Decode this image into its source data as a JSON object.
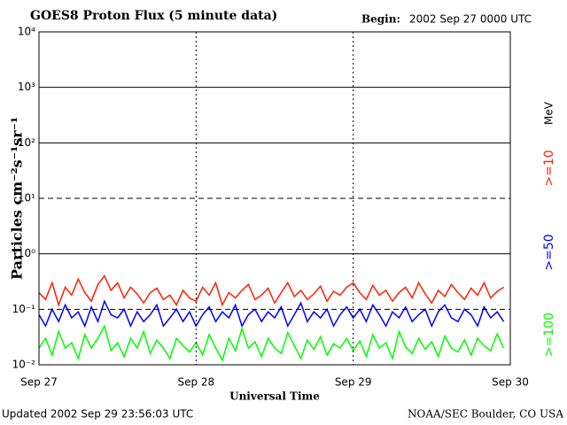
{
  "chart_data": {
    "type": "line",
    "title": "GOES8 Proton Flux (5 minute data)",
    "begin_label": "Begin:",
    "begin": "2002 Sep 27 0000 UTC",
    "ylabel": "Particles cm⁻²s⁻¹sr⁻¹",
    "xlabel": "Universal Time",
    "updated": "Updated 2002 Sep 29 23:56:03 UTC",
    "source": "NOAA/SEC Boulder, CO USA",
    "units_label": "MeV",
    "log_y": true,
    "ylim": [
      0.01,
      10000
    ],
    "yticks": [
      {
        "value": 10000,
        "label": "10⁴"
      },
      {
        "value": 1000,
        "label": "10³"
      },
      {
        "value": 100,
        "label": "10²"
      },
      {
        "value": 10,
        "label": "10¹"
      },
      {
        "value": 1,
        "label": "10⁰"
      },
      {
        "value": 0.1,
        "label": "10⁻¹"
      },
      {
        "value": 0.01,
        "label": "10⁻²"
      }
    ],
    "grid_styles": [
      "solid",
      "solid",
      "solid",
      "dashed",
      "solid",
      "dashed",
      "solid"
    ],
    "xlim": [
      0,
      72
    ],
    "xticks": [
      {
        "value": 0,
        "label": "Sep 27"
      },
      {
        "value": 24,
        "label": "Sep 28"
      },
      {
        "value": 48,
        "label": "Sep 29"
      },
      {
        "value": 72,
        "label": "Sep 30"
      }
    ],
    "x": [
      0,
      1,
      2,
      3,
      4,
      5,
      6,
      7,
      8,
      9,
      10,
      11,
      12,
      13,
      14,
      15,
      16,
      17,
      18,
      19,
      20,
      21,
      22,
      23,
      24,
      25,
      26,
      27,
      28,
      29,
      30,
      31,
      32,
      33,
      34,
      35,
      36,
      37,
      38,
      39,
      40,
      41,
      42,
      43,
      44,
      45,
      46,
      47,
      48,
      49,
      50,
      51,
      52,
      53,
      54,
      55,
      56,
      57,
      58,
      59,
      60,
      61,
      62,
      63,
      64,
      65,
      66,
      67,
      68,
      69,
      70,
      71
    ],
    "series": [
      {
        "name": ">=10",
        "color": "#ff2000",
        "values": [
          0.2,
          0.15,
          0.3,
          0.12,
          0.25,
          0.18,
          0.35,
          0.2,
          0.14,
          0.28,
          0.4,
          0.22,
          0.3,
          0.16,
          0.25,
          0.19,
          0.13,
          0.2,
          0.24,
          0.15,
          0.18,
          0.12,
          0.22,
          0.16,
          0.14,
          0.25,
          0.18,
          0.3,
          0.12,
          0.2,
          0.16,
          0.22,
          0.28,
          0.15,
          0.18,
          0.24,
          0.13,
          0.2,
          0.3,
          0.17,
          0.22,
          0.15,
          0.19,
          0.26,
          0.14,
          0.21,
          0.18,
          0.25,
          0.3,
          0.2,
          0.15,
          0.27,
          0.18,
          0.22,
          0.14,
          0.2,
          0.25,
          0.16,
          0.3,
          0.19,
          0.13,
          0.22,
          0.17,
          0.28,
          0.2,
          0.15,
          0.24,
          0.18,
          0.3,
          0.16,
          0.21,
          0.25
        ]
      },
      {
        "name": ">=50",
        "color": "#0000ff",
        "values": [
          0.08,
          0.05,
          0.1,
          0.06,
          0.12,
          0.07,
          0.09,
          0.05,
          0.11,
          0.06,
          0.14,
          0.08,
          0.07,
          0.1,
          0.05,
          0.09,
          0.06,
          0.08,
          0.12,
          0.05,
          0.07,
          0.1,
          0.06,
          0.09,
          0.05,
          0.08,
          0.11,
          0.06,
          0.09,
          0.07,
          0.12,
          0.05,
          0.08,
          0.1,
          0.06,
          0.09,
          0.07,
          0.11,
          0.05,
          0.08,
          0.13,
          0.06,
          0.09,
          0.07,
          0.1,
          0.05,
          0.08,
          0.11,
          0.07,
          0.1,
          0.06,
          0.12,
          0.08,
          0.05,
          0.09,
          0.07,
          0.11,
          0.06,
          0.08,
          0.1,
          0.05,
          0.09,
          0.12,
          0.07,
          0.06,
          0.1,
          0.08,
          0.05,
          0.11,
          0.07,
          0.09,
          0.06
        ]
      },
      {
        "name": ">=100",
        "color": "#00ff00",
        "values": [
          0.02,
          0.03,
          0.015,
          0.04,
          0.02,
          0.025,
          0.013,
          0.035,
          0.02,
          0.03,
          0.05,
          0.018,
          0.025,
          0.014,
          0.03,
          0.02,
          0.04,
          0.016,
          0.028,
          0.02,
          0.013,
          0.03,
          0.022,
          0.017,
          0.025,
          0.015,
          0.035,
          0.02,
          0.012,
          0.03,
          0.018,
          0.045,
          0.02,
          0.026,
          0.014,
          0.03,
          0.02,
          0.016,
          0.038,
          0.022,
          0.013,
          0.028,
          0.019,
          0.032,
          0.015,
          0.024,
          0.02,
          0.03,
          0.018,
          0.027,
          0.014,
          0.035,
          0.02,
          0.025,
          0.013,
          0.04,
          0.021,
          0.016,
          0.03,
          0.019,
          0.026,
          0.014,
          0.033,
          0.02,
          0.017,
          0.028,
          0.015,
          0.03,
          0.022,
          0.018,
          0.036,
          0.02
        ]
      }
    ]
  }
}
